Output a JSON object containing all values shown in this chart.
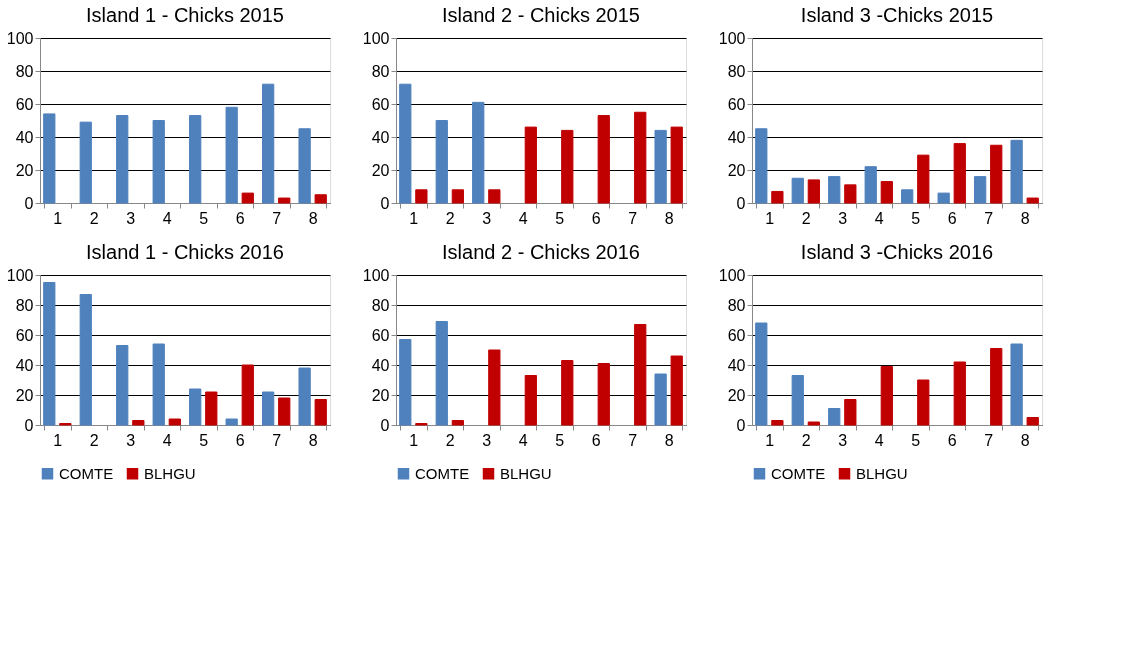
{
  "chart_data": [
    {
      "type": "bar",
      "title": "Island 1 - Chicks 2015",
      "categories": [
        "1",
        "2",
        "3",
        "4",
        "5",
        "6",
        "7",
        "8"
      ],
      "ylim": [
        0,
        100
      ],
      "yticks": [
        0,
        20,
        40,
        60,
        80,
        100
      ],
      "grid": "y",
      "legend": false,
      "series": [
        {
          "color": "#4f81bd",
          "values": [
            54,
            49,
            53,
            50,
            53,
            58,
            72,
            45
          ]
        },
        {
          "color": "#c00000",
          "values": [
            null,
            null,
            null,
            null,
            null,
            6,
            3,
            5
          ]
        }
      ]
    },
    {
      "type": "bar",
      "title": "Island 2 - Chicks 2015",
      "categories": [
        "1",
        "2",
        "3",
        "4",
        "5",
        "6",
        "7",
        "8"
      ],
      "ylim": [
        0,
        100
      ],
      "yticks": [
        0,
        20,
        40,
        60,
        80,
        100
      ],
      "grid": "y",
      "legend": false,
      "series": [
        {
          "color": "#4f81bd",
          "values": [
            72,
            50,
            61,
            null,
            null,
            null,
            null,
            44
          ]
        },
        {
          "color": "#c00000",
          "values": [
            8,
            8,
            8,
            46,
            44,
            53,
            55,
            46
          ]
        }
      ]
    },
    {
      "type": "bar",
      "title": "Island 3 -Chicks 2015",
      "categories": [
        "1",
        "2",
        "3",
        "4",
        "5",
        "6",
        "7",
        "8"
      ],
      "ylim": [
        0,
        100
      ],
      "yticks": [
        0,
        20,
        40,
        60,
        80,
        100
      ],
      "grid": "y",
      "legend": false,
      "series": [
        {
          "color": "#4f81bd",
          "values": [
            45,
            15,
            16,
            22,
            8,
            6,
            16,
            38
          ]
        },
        {
          "color": "#c00000",
          "values": [
            7,
            14,
            11,
            13,
            29,
            36,
            35,
            3
          ]
        }
      ]
    },
    {
      "type": "bar",
      "title": "Island 1 - Chicks 2016",
      "categories": [
        "1",
        "2",
        "3",
        "4",
        "5",
        "6",
        "7",
        "8"
      ],
      "ylim": [
        0,
        100
      ],
      "yticks": [
        0,
        20,
        40,
        60,
        80,
        100
      ],
      "grid": "y",
      "legend": "bottom",
      "series": [
        {
          "name": "COMTE",
          "color": "#4f81bd",
          "values": [
            95,
            87,
            53,
            54,
            24,
            4,
            22,
            38
          ]
        },
        {
          "name": "BLHGU",
          "color": "#c00000",
          "values": [
            1,
            null,
            3,
            4,
            22,
            40,
            18,
            17
          ]
        }
      ]
    },
    {
      "type": "bar",
      "title": "Island 2 - Chicks 2016",
      "categories": [
        "1",
        "2",
        "3",
        "4",
        "5",
        "6",
        "7",
        "8"
      ],
      "ylim": [
        0,
        100
      ],
      "yticks": [
        0,
        20,
        40,
        60,
        80,
        100
      ],
      "grid": "y",
      "legend": "bottom",
      "series": [
        {
          "name": "COMTE",
          "color": "#4f81bd",
          "values": [
            57,
            69,
            null,
            null,
            null,
            null,
            null,
            34
          ]
        },
        {
          "name": "BLHGU",
          "color": "#c00000",
          "values": [
            1,
            3,
            50,
            33,
            43,
            41,
            67,
            46
          ]
        }
      ]
    },
    {
      "type": "bar",
      "title": "Island 3 -Chicks 2016",
      "categories": [
        "1",
        "2",
        "3",
        "4",
        "5",
        "6",
        "7",
        "8"
      ],
      "ylim": [
        0,
        100
      ],
      "yticks": [
        0,
        20,
        40,
        60,
        80,
        100
      ],
      "grid": "y",
      "legend": "bottom",
      "series": [
        {
          "name": "COMTE",
          "color": "#4f81bd",
          "values": [
            68,
            33,
            11,
            null,
            null,
            null,
            null,
            54
          ]
        },
        {
          "name": "BLHGU",
          "color": "#c00000",
          "values": [
            3,
            2,
            17,
            39,
            30,
            42,
            51,
            5
          ]
        }
      ]
    }
  ]
}
